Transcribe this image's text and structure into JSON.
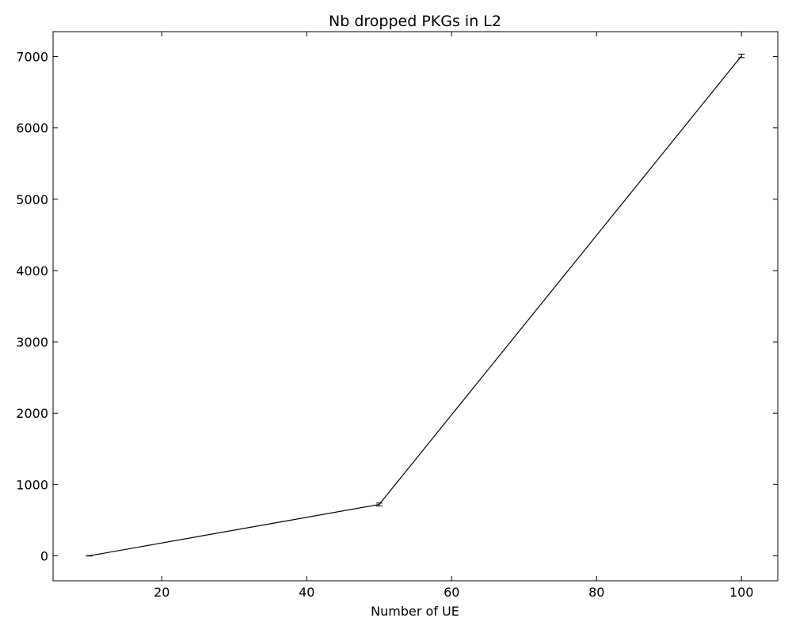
{
  "chart_data": {
    "type": "line",
    "title": "Nb dropped PKGs in L2",
    "xlabel": "Number of UE",
    "ylabel": "",
    "xlim": [
      5,
      105
    ],
    "ylim": [
      -350,
      7350
    ],
    "xticks": [
      20,
      40,
      60,
      80,
      100
    ],
    "yticks": [
      0,
      1000,
      2000,
      3000,
      4000,
      5000,
      6000,
      7000
    ],
    "grid": false,
    "series": [
      {
        "name": "",
        "color": "#000000",
        "x": [
          10,
          50,
          100
        ],
        "y": [
          0,
          720,
          7010
        ],
        "yerr": [
          3,
          20,
          25
        ]
      }
    ]
  }
}
